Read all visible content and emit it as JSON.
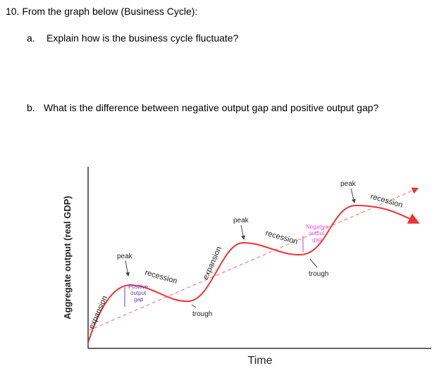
{
  "question": {
    "title": "10. From the graph below (Business Cycle):",
    "items": [
      {
        "letter": "a.",
        "text": "Explain how is the business cycle fluctuate?"
      },
      {
        "letter": "b.",
        "text": "What is the difference between negative output gap and positive output gap?"
      }
    ]
  },
  "diagram": {
    "y_label": "Aggregate output (real GDP)",
    "x_label": "Time",
    "peaks": [
      "peak",
      "peak",
      "peak"
    ],
    "troughs": [
      "trough",
      "trough"
    ],
    "recessions": [
      "recession",
      "recession",
      "recession"
    ],
    "expansions": [
      "expansion",
      "expansion"
    ],
    "positive_gap": [
      "Positive",
      "output",
      "gap"
    ],
    "negative_gap": [
      "Negative",
      "output",
      "gap"
    ]
  }
}
